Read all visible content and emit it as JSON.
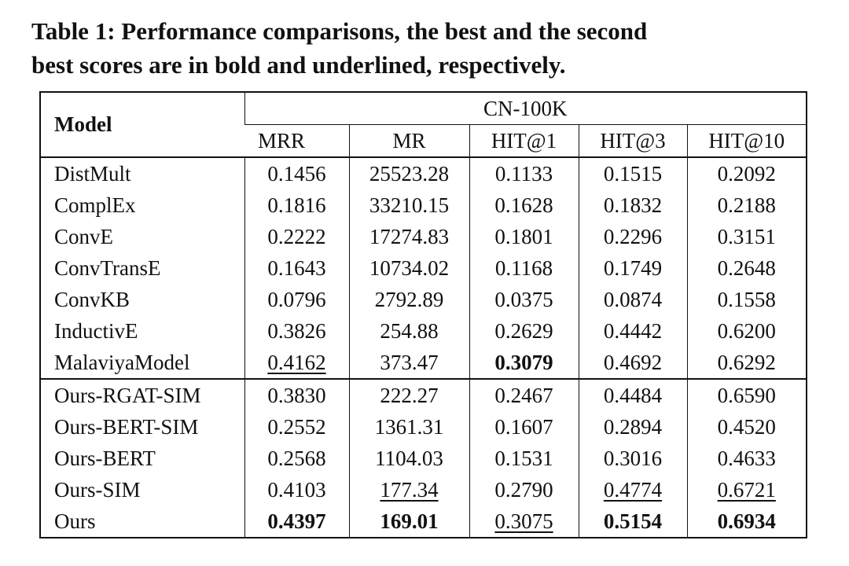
{
  "caption": {
    "line1": "Table 1: Performance comparisons, the best and the second",
    "line2": "best scores are in bold and underlined, respectively."
  },
  "table": {
    "header": {
      "model": "Model",
      "group": "CN-100K",
      "columns": [
        "MRR",
        "MR",
        "HIT@1",
        "HIT@3",
        "HIT@10"
      ]
    },
    "rows": [
      [
        "DistMult",
        "0.1456",
        "25523.28",
        "0.1133",
        "0.1515",
        "0.2092"
      ],
      [
        "ComplEx",
        "0.1816",
        "33210.15",
        "0.1628",
        "0.1832",
        "0.2188"
      ],
      [
        "ConvE",
        "0.2222",
        "17274.83",
        "0.1801",
        "0.2296",
        "0.3151"
      ],
      [
        "ConvTransE",
        "0.1643",
        "10734.02",
        "0.1168",
        "0.1749",
        "0.2648"
      ],
      [
        "ConvKB",
        "0.0796",
        "2792.89",
        "0.0375",
        "0.0874",
        "0.1558"
      ],
      [
        "InductivE",
        "0.3826",
        "254.88",
        "0.2629",
        "0.4442",
        "0.6200"
      ],
      [
        "MalaviyaModel",
        "0.4162",
        "373.47",
        "0.3079",
        "0.4692",
        "0.6292"
      ],
      [
        "Ours-RGAT-SIM",
        "0.3830",
        "222.27",
        "0.2467",
        "0.4484",
        "0.6590"
      ],
      [
        "Ours-BERT-SIM",
        "0.2552",
        "1361.31",
        "0.1607",
        "0.2894",
        "0.4520"
      ],
      [
        "Ours-BERT",
        "0.2568",
        "1104.03",
        "0.1531",
        "0.3016",
        "0.4633"
      ],
      [
        "Ours-SIM",
        "0.4103",
        "177.34",
        "0.2790",
        "0.4774",
        "0.6721"
      ],
      [
        "Ours",
        "0.4397",
        "169.01",
        "0.3075",
        "0.5154",
        "0.6934"
      ]
    ],
    "bold": [
      [
        6,
        3
      ],
      [
        11,
        1
      ],
      [
        11,
        2
      ],
      [
        11,
        4
      ],
      [
        11,
        5
      ]
    ],
    "underline": [
      [
        6,
        1
      ],
      [
        10,
        2
      ],
      [
        11,
        3
      ],
      [
        10,
        4
      ],
      [
        10,
        5
      ]
    ],
    "group_separator_after": 6
  }
}
